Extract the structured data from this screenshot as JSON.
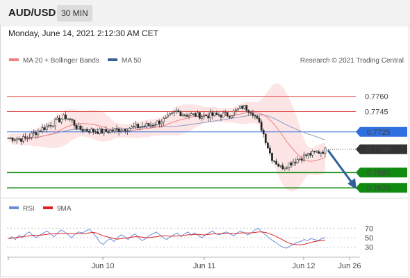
{
  "header": {
    "symbol": "AUD/USD",
    "timeframe": "30 MIN",
    "datetime": "Monday, June 14, 2021 2:12:30 AM CET"
  },
  "legend": {
    "ma20": "MA 20 + Bollinger Bands",
    "ma50": "MA 50",
    "credit": "Research © 2021 Trading Central",
    "rsi": "RSI",
    "rsi_ma": "9MA"
  },
  "colors": {
    "ma20": "#f08080",
    "ma50": "#3a5f9a",
    "resistance": "#e05050",
    "pivot": "#2f6fe0",
    "support": "#108a10",
    "current": "#333333",
    "arrow": "#2e5f9e",
    "rsi": "#6a8fd8",
    "rsi_ma": "#dd2222"
  },
  "chart_data": [
    {
      "type": "candlestick",
      "title": "AUD/USD",
      "x_ticks": [
        "Jun 10",
        "Jun 11",
        "Jun 12",
        "Jun 26"
      ],
      "y_range": [
        0.7662,
        0.7785
      ],
      "current_price": "0.7708",
      "levels": [
        {
          "label": "0.7760",
          "value": 0.776,
          "kind": "resistance"
        },
        {
          "label": "0.7745",
          "value": 0.7745,
          "kind": "resistance"
        },
        {
          "label": "0.7725",
          "value": 0.7725,
          "kind": "pivot"
        },
        {
          "label": "0.7685",
          "value": 0.7685,
          "kind": "support"
        },
        {
          "label": "0.7670",
          "value": 0.767,
          "kind": "support"
        }
      ],
      "projection": {
        "from": 0.7707,
        "to": 0.767
      }
    },
    {
      "type": "line",
      "title": "RSI",
      "y_ticks": [
        "70",
        "50",
        "30"
      ],
      "y_range": [
        15,
        85
      ],
      "series": [
        {
          "name": "RSI",
          "values": [
            48,
            52,
            46,
            55,
            50,
            58,
            62,
            54,
            50,
            56,
            60,
            64,
            58,
            52,
            60,
            66,
            62,
            56,
            50,
            58,
            62,
            60,
            64,
            68,
            60,
            52,
            40,
            36,
            44,
            48,
            42,
            50,
            56,
            52,
            46,
            54,
            58,
            50,
            44,
            48,
            54,
            58,
            62,
            56,
            50,
            46,
            52,
            56,
            60,
            52,
            58,
            62,
            56,
            60,
            54,
            50,
            56,
            60,
            64,
            58,
            56,
            60,
            62,
            58,
            54,
            60,
            64,
            60,
            56,
            60,
            66,
            70,
            62,
            56,
            50,
            44,
            40,
            34,
            30,
            28,
            32,
            36,
            40,
            42,
            46,
            44,
            48,
            46,
            44,
            48,
            50
          ]
        },
        {
          "name": "9MA",
          "values": [
            48,
            49,
            50,
            51,
            52,
            53,
            54,
            55,
            55,
            55,
            56,
            57,
            58,
            58,
            58,
            59,
            59,
            59,
            58,
            58,
            58,
            58,
            59,
            60,
            61,
            60,
            57,
            54,
            52,
            50,
            48,
            47,
            48,
            49,
            50,
            51,
            52,
            52,
            51,
            50,
            50,
            51,
            52,
            53,
            54,
            54,
            53,
            53,
            54,
            54,
            55,
            56,
            56,
            57,
            57,
            56,
            56,
            57,
            58,
            58,
            58,
            58,
            59,
            59,
            59,
            59,
            60,
            60,
            60,
            60,
            61,
            62,
            62,
            61,
            59,
            56,
            53,
            49,
            45,
            41,
            38,
            36,
            35,
            35,
            36,
            38,
            40,
            42,
            43,
            44,
            45
          ]
        }
      ]
    }
  ]
}
